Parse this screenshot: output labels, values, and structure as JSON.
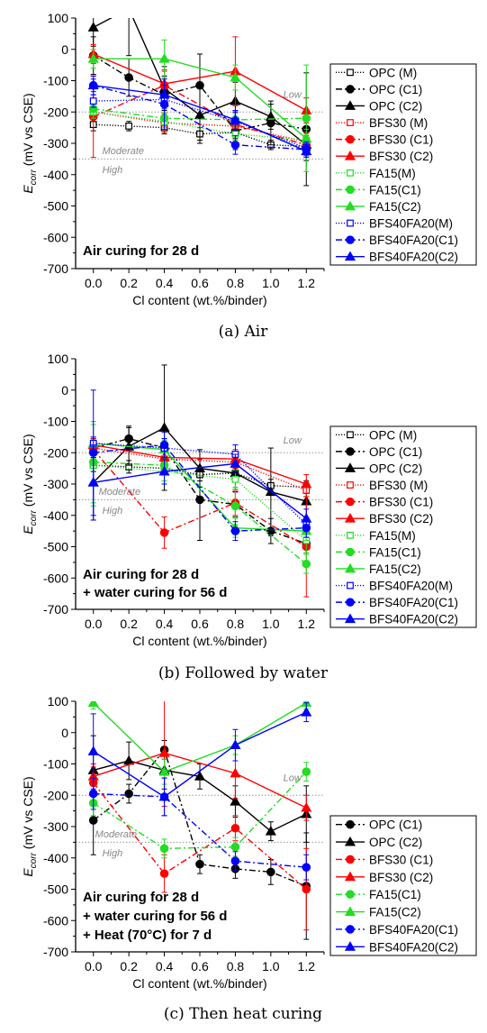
{
  "colors": {
    "OPC": "#000000",
    "BFS30": "#ff0000",
    "FA15": "#22dd22",
    "BFS40FA20": "#0000ff",
    "zone_line": "#999999",
    "zone_text": "#888888"
  },
  "chart_data": [
    {
      "type": "line",
      "caption": "(a) Air",
      "annotation": [
        "Air curing for 28 d"
      ],
      "ylabel_main": "E",
      "ylabel_sub": "corr",
      "ylabel_rest": " (mV vs CSE)",
      "xlabel": "Cl content (wt.%/binder)",
      "xlim": [
        -0.1,
        1.3
      ],
      "ylim": [
        -700,
        100
      ],
      "xticks": [
        "0.0",
        "0.2",
        "0.4",
        "0.6",
        "0.8",
        "1.0",
        "1.2"
      ],
      "yticks": [
        "100",
        "0",
        "-100",
        "-200",
        "-300",
        "-400",
        "-500",
        "-600",
        "-700"
      ],
      "zones": [
        {
          "label": "Low",
          "y": -200,
          "label_x": 1.07,
          "label_y": -155
        },
        {
          "label": "Moderate",
          "y": -350,
          "label_x": 0.05,
          "label_y": -335
        },
        {
          "label": "High",
          "y": -350,
          "label_x": 0.05,
          "label_y": -395
        }
      ],
      "legend": {
        "position": "right"
      },
      "series": [
        {
          "name": "OPC (M)",
          "group": "OPC",
          "style": "dotted",
          "marker": "square-open",
          "x": [
            0,
            0.2,
            0.4,
            0.6,
            0.8,
            1.0,
            1.2
          ],
          "y": [
            -240,
            -245,
            -250,
            -270,
            -265,
            -305,
            -310
          ],
          "err": [
            20,
            15,
            20,
            20,
            20,
            15,
            20
          ]
        },
        {
          "name": "OPC (C1)",
          "group": "OPC",
          "style": "dashdot",
          "marker": "circle",
          "x": [
            0,
            0.2,
            0.4,
            0.6,
            0.8,
            1.0,
            1.2
          ],
          "y": [
            -20,
            -90,
            -145,
            -115,
            -260,
            -235,
            -255
          ],
          "err": [
            60,
            60,
            60,
            100,
            60,
            70,
            180
          ]
        },
        {
          "name": "OPC (C2)",
          "group": "OPC",
          "style": "solid",
          "marker": "triangle",
          "x": [
            0,
            0.2,
            0.4,
            0.6,
            0.8,
            1.0,
            1.2
          ],
          "y": [
            70,
            130,
            -125,
            -210,
            -165,
            -215,
            -305
          ],
          "err": [
            60,
            150,
            70,
            90,
            60,
            40,
            50
          ]
        },
        {
          "name": "BFS30 (M)",
          "group": "BFS30",
          "style": "dotted",
          "marker": "square-open",
          "x": [
            0,
            0.4,
            0.8,
            1.2
          ],
          "y": [
            -200,
            -235,
            -245,
            -295
          ],
          "err": [
            20,
            30,
            30,
            30
          ]
        },
        {
          "name": "BFS30 (C1)",
          "group": "BFS30",
          "style": "dashdot",
          "marker": "circle",
          "x": [
            0,
            0.4,
            0.8,
            1.2
          ],
          "y": [
            -215,
            -115,
            -240,
            -305
          ],
          "err": [
            130,
            50,
            40,
            30
          ]
        },
        {
          "name": "BFS30 (C2)",
          "group": "BFS30",
          "style": "solid",
          "marker": "triangle",
          "x": [
            0,
            0.4,
            0.8,
            1.2
          ],
          "y": [
            -15,
            -110,
            -70,
            -195
          ],
          "err": [
            30,
            40,
            110,
            40
          ]
        },
        {
          "name": "FA15(M)",
          "group": "FA15",
          "style": "dotted",
          "marker": "square-open",
          "x": [
            0,
            0.4,
            0.8,
            1.2
          ],
          "y": [
            -200,
            -230,
            -270,
            -290
          ],
          "err": [
            20,
            20,
            20,
            20
          ]
        },
        {
          "name": "FA15(C1)",
          "group": "FA15",
          "style": "dashdot",
          "marker": "circle",
          "x": [
            0,
            0.4,
            0.8,
            1.2
          ],
          "y": [
            -190,
            -220,
            -225,
            -220
          ],
          "err": [
            20,
            20,
            20,
            170
          ]
        },
        {
          "name": "FA15(C2)",
          "group": "FA15",
          "style": "solid",
          "marker": "triangle",
          "x": [
            0,
            0.4,
            0.8,
            1.2
          ],
          "y": [
            -30,
            -30,
            -90,
            -285
          ],
          "err": [
            30,
            60,
            40,
            30
          ]
        },
        {
          "name": "BFS40FA20(M)",
          "group": "BFS40FA20",
          "style": "dotted",
          "marker": "square-open",
          "x": [
            0,
            0.4,
            0.8,
            1.2
          ],
          "y": [
            -165,
            -160,
            -230,
            -315
          ],
          "err": [
            20,
            30,
            30,
            20
          ]
        },
        {
          "name": "BFS40FA20(C1)",
          "group": "BFS40FA20",
          "style": "dashdot",
          "marker": "circle",
          "x": [
            0,
            0.4,
            0.8,
            1.2
          ],
          "y": [
            -115,
            -175,
            -305,
            -320
          ],
          "err": [
            30,
            80,
            30,
            20
          ]
        },
        {
          "name": "BFS40FA20(C2)",
          "group": "BFS40FA20",
          "style": "solid",
          "marker": "triangle",
          "x": [
            0,
            0.4,
            0.8,
            1.2
          ],
          "y": [
            -115,
            -145,
            -225,
            -325
          ],
          "err": [
            20,
            30,
            30,
            20
          ]
        }
      ]
    },
    {
      "type": "line",
      "caption": "(b) Followed by water",
      "annotation": [
        "Air curing for 28 d",
        "+ water curing for 56 d"
      ],
      "ylabel_main": "E",
      "ylabel_sub": "corr",
      "ylabel_rest": " (mV vs CSE)",
      "xlabel": "Cl content (wt.%/binder)",
      "xlim": [
        -0.1,
        1.3
      ],
      "ylim": [
        -700,
        100
      ],
      "xticks": [
        "0.0",
        "0.2",
        "0.4",
        "0.6",
        "0.8",
        "1.0",
        "1.2"
      ],
      "yticks": [
        "100",
        "0",
        "-100",
        "-200",
        "-300",
        "-400",
        "-500",
        "-600",
        "-700"
      ],
      "zones": [
        {
          "label": "Low",
          "y": -200,
          "label_x": 1.07,
          "label_y": -170
        },
        {
          "label": "Moderate",
          "y": -350,
          "label_x": 0.03,
          "label_y": -335
        },
        {
          "label": "High",
          "y": -350,
          "label_x": 0.05,
          "label_y": -395
        }
      ],
      "legend": {
        "position": "right"
      },
      "series": [
        {
          "name": "OPC (M)",
          "group": "OPC",
          "style": "dotted",
          "marker": "square-open",
          "x": [
            0,
            0.2,
            0.4,
            0.6,
            0.8,
            1.0,
            1.2
          ],
          "y": [
            -240,
            -245,
            -250,
            -270,
            -265,
            -305,
            -310
          ],
          "err": [
            20,
            20,
            20,
            20,
            20,
            20,
            20
          ]
        },
        {
          "name": "OPC (C1)",
          "group": "OPC",
          "style": "dashdot",
          "marker": "circle",
          "x": [
            0,
            0.2,
            0.4,
            0.6,
            0.8,
            1.0,
            1.2
          ],
          "y": [
            -185,
            -155,
            -185,
            -350,
            -365,
            -450,
            -490
          ],
          "err": [
            30,
            40,
            30,
            130,
            40,
            40,
            30
          ]
        },
        {
          "name": "OPC (C2)",
          "group": "OPC",
          "style": "solid",
          "marker": "triangle",
          "x": [
            0,
            0.2,
            0.4,
            0.6,
            0.8,
            1.0,
            1.2
          ],
          "y": [
            -295,
            -180,
            -120,
            -250,
            -265,
            -325,
            -355
          ],
          "err": [
            120,
            60,
            200,
            60,
            60,
            140,
            60
          ]
        },
        {
          "name": "BFS30 (M)",
          "group": "BFS30",
          "style": "dotted",
          "marker": "square-open",
          "x": [
            0,
            0.4,
            0.8,
            1.2
          ],
          "y": [
            -185,
            -220,
            -230,
            -320
          ],
          "err": [
            20,
            20,
            20,
            20
          ]
        },
        {
          "name": "BFS30 (C1)",
          "group": "BFS30",
          "style": "dashdot",
          "marker": "circle",
          "x": [
            0,
            0.4,
            0.8,
            1.2
          ],
          "y": [
            -190,
            -455,
            -360,
            -500
          ],
          "err": [
            30,
            50,
            40,
            160
          ]
        },
        {
          "name": "BFS30 (C2)",
          "group": "BFS30",
          "style": "solid",
          "marker": "triangle",
          "x": [
            0,
            0.4,
            0.8,
            1.2
          ],
          "y": [
            -175,
            -215,
            -220,
            -300
          ],
          "err": [
            20,
            30,
            30,
            30
          ]
        },
        {
          "name": "FA15(M)",
          "group": "FA15",
          "style": "dotted",
          "marker": "square-open",
          "x": [
            0,
            0.4,
            0.8,
            1.2
          ],
          "y": [
            -240,
            -260,
            -285,
            -480
          ],
          "err": [
            130,
            30,
            30,
            40
          ]
        },
        {
          "name": "FA15(C1)",
          "group": "FA15",
          "style": "dashdot",
          "marker": "circle",
          "x": [
            0,
            0.4,
            0.8,
            1.2
          ],
          "y": [
            -230,
            -240,
            -370,
            -555
          ],
          "err": [
            130,
            30,
            60,
            30
          ]
        },
        {
          "name": "FA15(C2)",
          "group": "FA15",
          "style": "solid",
          "marker": "triangle",
          "x": [
            0,
            0.4,
            0.8,
            1.2
          ],
          "y": [
            -170,
            -190,
            -440,
            -450
          ],
          "err": [
            20,
            30,
            30,
            30
          ]
        },
        {
          "name": "BFS40FA20(M)",
          "group": "BFS40FA20",
          "style": "dotted",
          "marker": "square-open",
          "x": [
            0,
            0.4,
            0.8,
            1.2
          ],
          "y": [
            -170,
            -185,
            -205,
            -430
          ],
          "err": [
            20,
            30,
            30,
            20
          ]
        },
        {
          "name": "BFS40FA20(C1)",
          "group": "BFS40FA20",
          "style": "dashdot",
          "marker": "circle",
          "x": [
            0,
            0.4,
            0.8,
            1.2
          ],
          "y": [
            -200,
            -175,
            -450,
            -440
          ],
          "err": [
            200,
            40,
            30,
            30
          ]
        },
        {
          "name": "BFS40FA20(C2)",
          "group": "BFS40FA20",
          "style": "solid",
          "marker": "triangle",
          "x": [
            0,
            0.4,
            0.8,
            1.2
          ],
          "y": [
            -295,
            -260,
            -235,
            -410
          ],
          "err": [
            120,
            40,
            30,
            30
          ]
        }
      ]
    },
    {
      "type": "line",
      "caption": "(c) Then heat curing",
      "annotation": [
        "Air curing for 28 d",
        "+ water curing for 56 d",
        "+ Heat (70°C) for 7 d"
      ],
      "ylabel_main": "E",
      "ylabel_sub": "corr",
      "ylabel_rest": " (mV vs CSE)",
      "xlabel": "Cl content (wt.%/binder)",
      "xlim": [
        -0.1,
        1.3
      ],
      "ylim": [
        -700,
        100
      ],
      "xticks": [
        "0.0",
        "0.2",
        "0.4",
        "0.6",
        "0.8",
        "1.0",
        "1.2"
      ],
      "yticks": [
        "100",
        "0",
        "-100",
        "-200",
        "-300",
        "-400",
        "-500",
        "-600",
        "-700"
      ],
      "zones": [
        {
          "label": "Low",
          "y": -200,
          "label_x": 1.07,
          "label_y": -155
        },
        {
          "label": "Moderate",
          "y": -350,
          "label_x": 0.01,
          "label_y": -335
        },
        {
          "label": "High",
          "y": -350,
          "label_x": 0.05,
          "label_y": -395
        }
      ],
      "legend": {
        "position": "right"
      },
      "series": [
        {
          "name": "OPC (C1)",
          "group": "OPC",
          "style": "dashdot",
          "marker": "circle",
          "x": [
            0,
            0.2,
            0.4,
            0.6,
            0.8,
            1.0,
            1.2
          ],
          "y": [
            -280,
            -195,
            -55,
            -420,
            -435,
            -445,
            -490
          ],
          "err": [
            110,
            30,
            30,
            30,
            30,
            40,
            170
          ]
        },
        {
          "name": "OPC (C2)",
          "group": "OPC",
          "style": "solid",
          "marker": "triangle",
          "x": [
            0,
            0.2,
            0.4,
            0.6,
            0.8,
            1.0,
            1.2
          ],
          "y": [
            -120,
            -90,
            -120,
            -140,
            -220,
            -315,
            -260
          ],
          "err": [
            110,
            60,
            60,
            40,
            50,
            30,
            90
          ]
        },
        {
          "name": "BFS30 (C1)",
          "group": "BFS30",
          "style": "dashdot",
          "marker": "circle",
          "x": [
            0,
            0.4,
            0.8,
            1.2
          ],
          "y": [
            -160,
            -450,
            -305,
            -500
          ],
          "err": [
            60,
            60,
            40,
            130
          ]
        },
        {
          "name": "BFS30 (C2)",
          "group": "BFS30",
          "style": "solid",
          "marker": "triangle",
          "x": [
            0,
            0.4,
            0.8,
            1.2
          ],
          "y": [
            -140,
            -65,
            -130,
            -240
          ],
          "err": [
            30,
            170,
            80,
            40
          ]
        },
        {
          "name": "FA15(C1)",
          "group": "FA15",
          "style": "dashdot",
          "marker": "circle",
          "x": [
            0,
            0.4,
            0.8,
            1.2
          ],
          "y": [
            -225,
            -370,
            -365,
            -125
          ],
          "err": [
            40,
            30,
            30,
            30
          ]
        },
        {
          "name": "FA15(C2)",
          "group": "FA15",
          "style": "solid",
          "marker": "triangle",
          "x": [
            0,
            0.4,
            0.8,
            1.2
          ],
          "y": [
            95,
            -125,
            -40,
            95
          ],
          "err": [
            20,
            40,
            30,
            20
          ]
        },
        {
          "name": "BFS40FA20(C1)",
          "group": "BFS40FA20",
          "style": "dashdot",
          "marker": "circle",
          "x": [
            0,
            0.4,
            0.8,
            1.2
          ],
          "y": [
            -195,
            -205,
            -410,
            -430
          ],
          "err": [
            50,
            60,
            30,
            40
          ]
        },
        {
          "name": "BFS40FA20(C2)",
          "group": "BFS40FA20",
          "style": "solid",
          "marker": "triangle",
          "x": [
            0,
            0.4,
            0.8,
            1.2
          ],
          "y": [
            -60,
            -205,
            -40,
            65
          ],
          "err": [
            120,
            60,
            50,
            30
          ]
        }
      ]
    }
  ]
}
